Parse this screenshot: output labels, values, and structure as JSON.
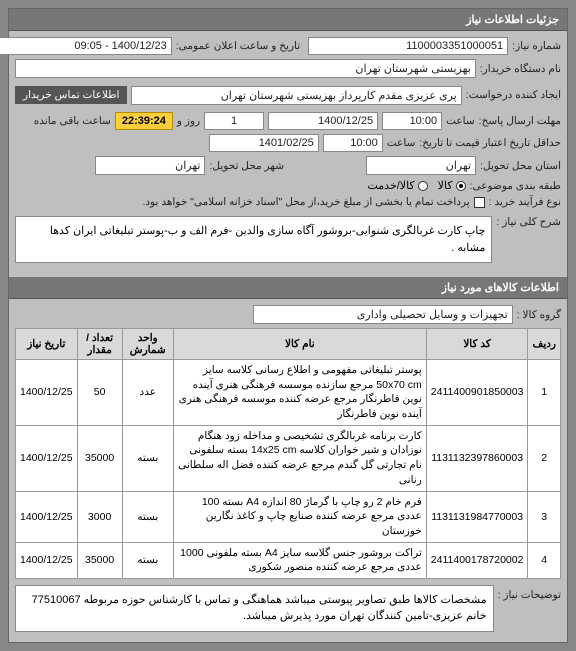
{
  "header": "جزئیات اطلاعات نیاز",
  "form": {
    "reqNoLabel": "شماره نیاز:",
    "reqNo": "1100003351000051",
    "announceLabel": "تاریخ و ساعت اعلان عمومی:",
    "announceValue": "1400/12/23 - 09:05",
    "buyerOrgLabel": "نام دستگاه خریدار:",
    "buyerOrg": "بهزیستی شهرستان تهران",
    "requesterLabel": "ایجاد کننده درخواست:",
    "requester": "پری عزیزی مقدم کارپرداز بهزیستی شهرستان تهران",
    "contactTitle": "اطلاعات تماس خریدار",
    "deadlineLabel": "مهلت ارسال پاسخ:",
    "deadlineTime": "10:00",
    "timeLabel": "ساعت",
    "deadlineDate": "1400/12/25",
    "remainDaysLabel": "روز و",
    "remainDays": "1",
    "remainTime": "22:39:24",
    "remainSuffix": "ساعت باقی مانده",
    "creditExpiryLabel": "حداقل تاریخ اعتبار قیمت تا تاریخ:",
    "creditTime": "10:00",
    "creditDate": "1401/02/25",
    "provinceLabel": "استان محل تحویل:",
    "province": "تهران",
    "cityLabel": "شهر محل تحویل:",
    "city": "تهران",
    "budgetTypeLabel": "طبقه بندی موضوعی:",
    "budgetOpts": {
      "goods": "کالا",
      "service": "کالا/خدمت"
    },
    "purchaseTypeLabel": "نوع فرآیند خرید :",
    "treasuryNote": "پرداخت تمام یا بخشی از مبلغ خرید،از محل \"اسناد خزانه اسلامی\" خواهد بود.",
    "descLabel": "شرح کلی نیاز :",
    "desc": "چاپ کارت غربالگری شنوایی-بروشور آگاه سازی والدین -فرم الف و ب-پوستر تبلیغاتی ایران کدها مشابه ."
  },
  "itemsHeader": "اطلاعات کالاهای مورد نیاز",
  "groupLabel": "گروه کالا :",
  "groupValue": "تجهیزات و وسایل تحصیلی واداری",
  "table": {
    "cols": [
      "ردیف",
      "کد کالا",
      "نام کالا",
      "واحد شمارش",
      "تعداد / مقدار",
      "تاریخ نیاز"
    ],
    "rows": [
      {
        "n": "1",
        "code": "2411400901850003",
        "name": "پوستر تبلیغاتی مفهومی و اطلاع رسانی کلاسه سایز 50x70 cm مرجع سازنده موسسه فرهنگی هنری آینده نوین فاطرنگار مرجع عرضه کننده موسسه فرهنگی هنری آینده نوین فاطرنگار",
        "unit": "عدد",
        "qty": "50",
        "date": "1400/12/25"
      },
      {
        "n": "2",
        "code": "1131132397860003",
        "name": "کارت برنامه غربالگری تشخیصی و مداخله زود هنگام نوزادان و شیر خواران کلاسه 14x25 cm بسته سلفونی نام تجارتی گل گندم مرجع عرضه کننده فضل اله سلطانی رنانی",
        "unit": "بسته",
        "qty": "35000",
        "date": "1400/12/25"
      },
      {
        "n": "3",
        "code": "1131131984770003",
        "name": "فرم خام 2 رو چاپ با گرماژ 80 اندازه A4 بسته 100 عددی مرجع عرضه کننده صنایع چاپ و کاغذ نگارین خوزستان",
        "unit": "بسته",
        "qty": "3000",
        "date": "1400/12/25"
      },
      {
        "n": "4",
        "code": "2411400178720002",
        "name": "تراکت بروشور جنس گلاسه سایز A4 بسته ملفونی 1000 عددی مرجع عرضه کننده منصور شکوری",
        "unit": "بسته",
        "qty": "35000",
        "date": "1400/12/25"
      }
    ]
  },
  "footerLabel": "توضیحات نیاز :",
  "footerNote": "مشخصات کالاها طبق تصاویر پیوستی میباشد هماهنگی و تماس با کارشناس حوزه مربوطه 77510067 خانم عزیزی-تامین کنندگان تهران مورد پذیرش میباشد."
}
